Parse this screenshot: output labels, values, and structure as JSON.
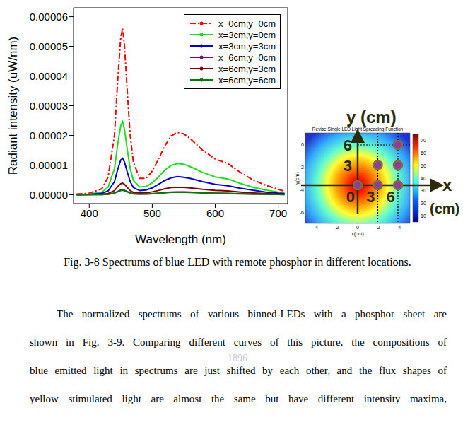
{
  "chart_data": {
    "type": "line",
    "x_label": "Wavelength (nm)",
    "y_label": "Radiant intensity (uW/nm)",
    "xlim": [
      375,
      715
    ],
    "xticks": [
      400,
      500,
      600,
      700
    ],
    "ylim": [
      -3e-06,
      6.3e-05
    ],
    "yticks": [
      {
        "value": 0,
        "label": "0.00000"
      },
      {
        "value": 1e-05,
        "label": "0.00001"
      },
      {
        "value": 2e-05,
        "label": "0.00002"
      },
      {
        "value": 3e-05,
        "label": "0.00003"
      },
      {
        "value": 4e-05,
        "label": "0.00004"
      },
      {
        "value": 5e-05,
        "label": "0.00005"
      },
      {
        "value": 6e-05,
        "label": "0.00006"
      }
    ],
    "grid": false,
    "legend": "upper right",
    "x": [
      380,
      400,
      420,
      430,
      440,
      445,
      450,
      453,
      456,
      460,
      465,
      470,
      480,
      490,
      500,
      510,
      520,
      530,
      540,
      550,
      560,
      580,
      600,
      620,
      640,
      660,
      680,
      700,
      710
    ],
    "series": [
      {
        "name": "x=0cm;y=0cm",
        "color": "#ff0000",
        "line_style": "dash_dot",
        "values": [
          2e-07,
          5e-07,
          2e-06,
          6e-06,
          2e-05,
          3.8e-05,
          5.3e-05,
          5.6e-05,
          5e-05,
          3.6e-05,
          2e-05,
          1.1e-05,
          5.5e-06,
          5.5e-06,
          8e-06,
          1.2e-05,
          1.65e-05,
          1.98e-05,
          2.1e-05,
          2.05e-05,
          1.9e-05,
          1.5e-05,
          1.2e-05,
          1.05e-05,
          7.5e-06,
          5e-06,
          3.2e-06,
          1.8e-06,
          1.2e-06
        ]
      },
      {
        "name": "x=3cm;y=0cm",
        "color": "#22dd22",
        "line_style": "solid",
        "values": [
          9e-08,
          2.2e-07,
          8.8e-07,
          2.6e-06,
          8.8e-06,
          1.67e-05,
          2.33e-05,
          2.46e-05,
          2.2e-05,
          1.58e-05,
          8.8e-06,
          4.8e-06,
          2.6e-06,
          2.75e-06,
          4e-06,
          6e-06,
          8.3e-06,
          9.9e-06,
          1.05e-05,
          1.03e-05,
          9.5e-06,
          7.5e-06,
          6e-06,
          5.3e-06,
          3.8e-06,
          2.5e-06,
          1.6e-06,
          9e-07,
          6e-07
        ]
      },
      {
        "name": "x=3cm;y=3cm",
        "color": "#0000cc",
        "line_style": "solid",
        "values": [
          4e-08,
          1.1e-07,
          4.4e-07,
          1.3e-06,
          4.4e-06,
          8.4e-06,
          1.17e-05,
          1.23e-05,
          1.1e-05,
          7.9e-06,
          4.4e-06,
          2.4e-06,
          1.4e-06,
          1.6e-06,
          2.3e-06,
          3.5e-06,
          4.8e-06,
          5.7e-06,
          6.1e-06,
          5.9e-06,
          5.5e-06,
          4.4e-06,
          3.5e-06,
          3e-06,
          2.2e-06,
          1.5e-06,
          9e-07,
          5e-07,
          3.5e-07
        ]
      },
      {
        "name": "x=6cm;y=0cm",
        "color": "#800080",
        "line_style": "solid",
        "values": [
          0,
          2e-08,
          6e-08,
          1.8e-07,
          6e-07,
          1.1e-06,
          1.6e-06,
          1.7e-06,
          1.5e-06,
          1.1e-06,
          6e-07,
          3.3e-07,
          2.2e-07,
          2.5e-07,
          3.6e-07,
          5.4e-07,
          7.4e-07,
          8.9e-07,
          9.5e-07,
          9.2e-07,
          8.6e-07,
          6.8e-07,
          5.4e-07,
          4.7e-07,
          3.4e-07,
          2.3e-07,
          1.4e-07,
          8e-08,
          5e-08
        ]
      },
      {
        "name": "x=6cm;y=3cm",
        "color": "#800000",
        "line_style": "solid",
        "values": [
          1e-08,
          4e-08,
          1.4e-07,
          4.2e-07,
          1.4e-06,
          2.7e-06,
          3.7e-06,
          3.9e-06,
          3.5e-06,
          2.5e-06,
          1.4e-06,
          7.7e-07,
          5.5e-07,
          6.6e-07,
          9.6e-07,
          1.44e-06,
          2e-06,
          2.4e-06,
          2.5e-06,
          2.5e-06,
          2.3e-06,
          1.8e-06,
          1.44e-06,
          1.26e-06,
          9e-07,
          6e-07,
          3.8e-07,
          2.2e-07,
          1.4e-07
        ]
      },
      {
        "name": "x=6cm;y=6cm",
        "color": "#007a00",
        "line_style": "solid",
        "values": [
          0,
          1e-08,
          5e-08,
          1.6e-07,
          5.4e-07,
          1e-06,
          1.4e-06,
          1.5e-06,
          1.35e-06,
          9.7e-07,
          5.4e-07,
          3e-07,
          2e-07,
          2.2e-07,
          3.2e-07,
          4.8e-07,
          6.6e-07,
          7.9e-07,
          8.4e-07,
          8.2e-07,
          7.6e-07,
          6e-07,
          4.8e-07,
          4.2e-07,
          3e-07,
          2e-07,
          1.3e-07,
          7e-08,
          5e-08
        ]
      }
    ]
  },
  "inset": {
    "y_label": "y (cm)",
    "x_label": "x",
    "x_unit": "(cm)",
    "x_ticks": [
      0,
      3,
      6
    ],
    "y_ticks": [
      3,
      6
    ],
    "points": [
      [
        0,
        0
      ],
      [
        3,
        0
      ],
      [
        3,
        3
      ],
      [
        6,
        0
      ],
      [
        6,
        3
      ],
      [
        6,
        6
      ]
    ],
    "heatmap": {
      "title": "Revise Single LED Light Spreading Function",
      "x_label": "x(cm)",
      "y_label": "y(cm)",
      "xlim": [
        -5,
        5
      ],
      "xticks": [
        -4,
        -2,
        0,
        2,
        4
      ],
      "ylim": [
        -7,
        1
      ],
      "yticks": [
        0,
        -2,
        -4,
        -6
      ],
      "colorbar_lim": [
        5,
        75
      ],
      "colorbar_ticks": [
        10,
        20,
        30,
        40,
        50,
        60,
        70
      ]
    }
  },
  "caption": "Fig. 3-8 Spectrums of blue LED with remote phosphor in different locations.",
  "paragraph": [
    "The normalized spectrums of various binned-LEDs with a phosphor sheet are",
    "shown in Fig. 3-9. Comparing different curves of this picture, the compositions of",
    "blue emitted light in spectrums are just shifted by each other, and the flux shapes of",
    "yellow stimulated light are almost the same but have different intensity maxima,"
  ],
  "watermark": "1896"
}
